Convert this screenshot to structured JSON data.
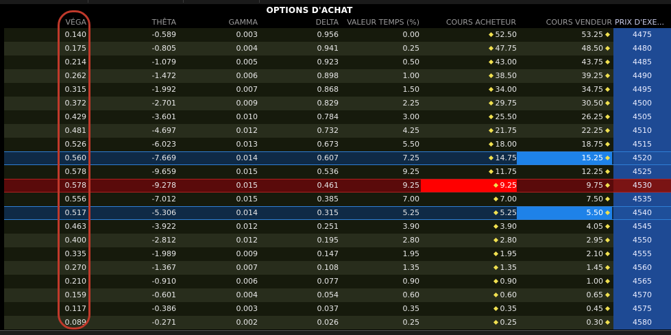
{
  "title": "OPTIONS D'ACHAT",
  "headers": {
    "vega": "VÉGA",
    "theta": "THÊTA",
    "gamma": "GAMMA",
    "delta": "DELTA",
    "time_value": "VALEUR TEMPS (%)",
    "bid": "COURS ACHETEUR",
    "ask": "COURS VENDEUR",
    "strike": "PRIX D'EXE..."
  },
  "colors": {
    "row_dark": "#161a0c",
    "row_light": "#282d1c",
    "strike_bg": "#1e4a94",
    "atm_row": "#5a0a0a",
    "atm_strike": "#7a1414",
    "selected_row": "#0f2a46",
    "selected_strike": "#1e4f9a",
    "bid_highlight": "#ff0000",
    "ask_highlight": "#1e82e8",
    "ring": "#c0392b"
  },
  "rows": [
    {
      "vega": "0.140",
      "theta": "-0.589",
      "gamma": "0.003",
      "delta": "0.956",
      "time_value": "0.00",
      "bid": "52.50",
      "ask": "53.25",
      "strike": "4475"
    },
    {
      "vega": "0.175",
      "theta": "-0.805",
      "gamma": "0.004",
      "delta": "0.941",
      "time_value": "0.25",
      "bid": "47.75",
      "ask": "48.50",
      "strike": "4480"
    },
    {
      "vega": "0.214",
      "theta": "-1.079",
      "gamma": "0.005",
      "delta": "0.923",
      "time_value": "0.50",
      "bid": "43.00",
      "ask": "43.75",
      "strike": "4485"
    },
    {
      "vega": "0.262",
      "theta": "-1.472",
      "gamma": "0.006",
      "delta": "0.898",
      "time_value": "1.00",
      "bid": "38.50",
      "ask": "39.25",
      "strike": "4490"
    },
    {
      "vega": "0.315",
      "theta": "-1.992",
      "gamma": "0.007",
      "delta": "0.868",
      "time_value": "1.50",
      "bid": "34.00",
      "ask": "34.75",
      "strike": "4495"
    },
    {
      "vega": "0.372",
      "theta": "-2.701",
      "gamma": "0.009",
      "delta": "0.829",
      "time_value": "2.25",
      "bid": "29.75",
      "ask": "30.50",
      "strike": "4500"
    },
    {
      "vega": "0.429",
      "theta": "-3.601",
      "gamma": "0.010",
      "delta": "0.784",
      "time_value": "3.00",
      "bid": "25.50",
      "ask": "26.25",
      "strike": "4505"
    },
    {
      "vega": "0.481",
      "theta": "-4.697",
      "gamma": "0.012",
      "delta": "0.732",
      "time_value": "4.25",
      "bid": "21.75",
      "ask": "22.25",
      "strike": "4510"
    },
    {
      "vega": "0.526",
      "theta": "-6.023",
      "gamma": "0.013",
      "delta": "0.673",
      "time_value": "5.50",
      "bid": "18.00",
      "ask": "18.75",
      "strike": "4515"
    },
    {
      "vega": "0.560",
      "theta": "-7.669",
      "gamma": "0.014",
      "delta": "0.607",
      "time_value": "7.25",
      "bid": "14.75",
      "ask": "15.25",
      "strike": "4520",
      "state": "selected",
      "ask_hl": true
    },
    {
      "vega": "0.578",
      "theta": "-9.659",
      "gamma": "0.015",
      "delta": "0.536",
      "time_value": "9.25",
      "bid": "11.75",
      "ask": "12.25",
      "strike": "4525"
    },
    {
      "vega": "0.578",
      "theta": "-9.278",
      "gamma": "0.015",
      "delta": "0.461",
      "time_value": "9.25",
      "bid": "9.25",
      "ask": "9.75",
      "strike": "4530",
      "state": "atm",
      "bid_hl": true
    },
    {
      "vega": "0.556",
      "theta": "-7.012",
      "gamma": "0.015",
      "delta": "0.385",
      "time_value": "7.00",
      "bid": "7.00",
      "ask": "7.50",
      "strike": "4535"
    },
    {
      "vega": "0.517",
      "theta": "-5.306",
      "gamma": "0.014",
      "delta": "0.315",
      "time_value": "5.25",
      "bid": "5.25",
      "ask": "5.50",
      "strike": "4540",
      "state": "selected",
      "ask_hl": true
    },
    {
      "vega": "0.463",
      "theta": "-3.922",
      "gamma": "0.012",
      "delta": "0.251",
      "time_value": "3.90",
      "bid": "3.90",
      "ask": "4.05",
      "strike": "4545"
    },
    {
      "vega": "0.400",
      "theta": "-2.812",
      "gamma": "0.012",
      "delta": "0.195",
      "time_value": "2.80",
      "bid": "2.80",
      "ask": "2.95",
      "strike": "4550"
    },
    {
      "vega": "0.335",
      "theta": "-1.989",
      "gamma": "0.009",
      "delta": "0.147",
      "time_value": "1.95",
      "bid": "1.95",
      "ask": "2.10",
      "strike": "4555"
    },
    {
      "vega": "0.270",
      "theta": "-1.367",
      "gamma": "0.007",
      "delta": "0.108",
      "time_value": "1.35",
      "bid": "1.35",
      "ask": "1.45",
      "strike": "4560"
    },
    {
      "vega": "0.210",
      "theta": "-0.910",
      "gamma": "0.006",
      "delta": "0.077",
      "time_value": "0.90",
      "bid": "0.90",
      "ask": "1.00",
      "strike": "4565"
    },
    {
      "vega": "0.159",
      "theta": "-0.601",
      "gamma": "0.004",
      "delta": "0.054",
      "time_value": "0.60",
      "bid": "0.60",
      "ask": "0.65",
      "strike": "4570"
    },
    {
      "vega": "0.117",
      "theta": "-0.386",
      "gamma": "0.003",
      "delta": "0.037",
      "time_value": "0.35",
      "bid": "0.35",
      "ask": "0.45",
      "strike": "4575"
    },
    {
      "vega": "0.089",
      "theta": "-0.271",
      "gamma": "0.002",
      "delta": "0.026",
      "time_value": "0.25",
      "bid": "0.25",
      "ask": "0.30",
      "strike": "4580"
    }
  ]
}
